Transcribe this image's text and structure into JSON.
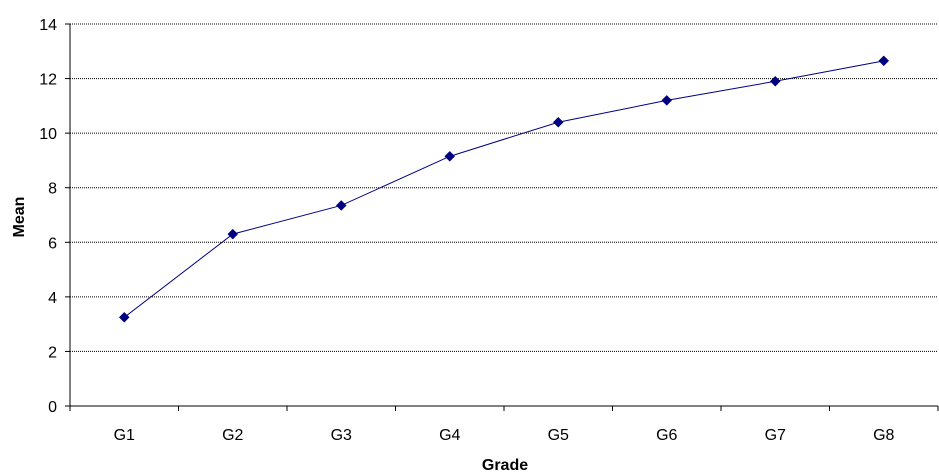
{
  "chart_data": {
    "type": "line",
    "title": "",
    "xlabel": "Grade",
    "ylabel": "Mean",
    "categories": [
      "G1",
      "G2",
      "G3",
      "G4",
      "G5",
      "G6",
      "G7",
      "G8"
    ],
    "y_ticks": [
      "0",
      "2",
      "4",
      "6",
      "8",
      "10",
      "12",
      "14"
    ],
    "ylim": [
      0,
      14
    ],
    "grid": "horizontal, dotted",
    "legend": "none",
    "series": [
      {
        "values": [
          3.25,
          6.3,
          7.35,
          9.15,
          10.4,
          11.2,
          11.9,
          12.65
        ],
        "color": "#000080",
        "marker": "diamond"
      }
    ]
  }
}
